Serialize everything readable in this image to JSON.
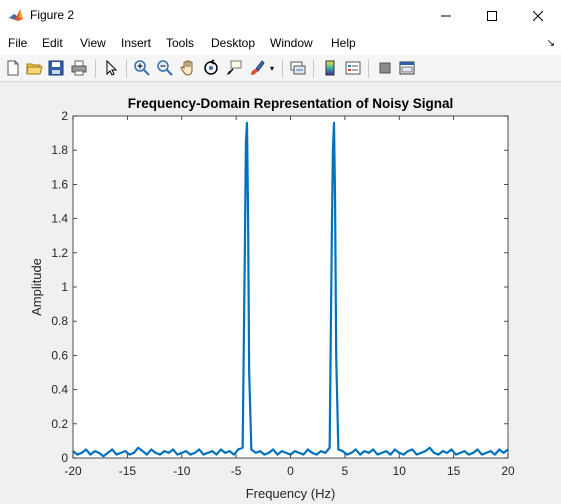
{
  "window": {
    "title": "Figure 2",
    "icon": "matlab-icon"
  },
  "menu": {
    "items": [
      "File",
      "Edit",
      "View",
      "Insert",
      "Tools",
      "Desktop",
      "Window",
      "Help"
    ]
  },
  "toolbar": {
    "buttons": [
      "new-figure-icon",
      "open-file-icon",
      "save-icon",
      "print-icon",
      "edit-plot-icon",
      "zoom-in-icon",
      "zoom-out-icon",
      "pan-icon",
      "rotate-3d-icon",
      "data-cursor-icon",
      "brush-icon",
      "link-plot-icon",
      "colorbar-icon",
      "legend-icon",
      "hide-plot-tools-icon",
      "show-plot-tools-icon"
    ]
  },
  "chart_data": {
    "type": "line",
    "title": "Frequency-Domain Representation of Noisy Signal",
    "xlabel": "Frequency (Hz)",
    "ylabel": "Amplitude",
    "xlim": [
      -20,
      20
    ],
    "ylim": [
      0,
      2
    ],
    "xticks": [
      -20,
      -15,
      -10,
      -5,
      0,
      5,
      10,
      15,
      20
    ],
    "yticks": [
      0,
      0.2,
      0.4,
      0.6,
      0.8,
      1,
      1.2,
      1.4,
      1.6,
      1.8,
      2
    ],
    "grid": false,
    "line_color": "#0072bd",
    "series": [
      {
        "x": [
          -20,
          -19.6,
          -19.2,
          -18.8,
          -18.4,
          -18,
          -17.6,
          -17.2,
          -16.8,
          -16.4,
          -16,
          -15.6,
          -15.2,
          -14.8,
          -14.4,
          -14,
          -13.6,
          -13.2,
          -12.8,
          -12.4,
          -12,
          -11.6,
          -11.2,
          -10.8,
          -10.4,
          -10,
          -9.6,
          -9.2,
          -8.8,
          -8.4,
          -8,
          -7.6,
          -7.2,
          -6.8,
          -6.4,
          -6,
          -5.6,
          -5.2,
          -4.8,
          -4.4,
          -4.2,
          -4.1,
          -4.0,
          -3.9,
          -3.8,
          -3.6,
          -3.2,
          -2.8,
          -2.4,
          -2,
          -1.6,
          -1.2,
          -0.8,
          -0.4,
          0,
          0.4,
          0.8,
          1.2,
          1.6,
          2,
          2.4,
          2.8,
          3.2,
          3.6,
          3.8,
          3.9,
          4.0,
          4.1,
          4.2,
          4.4,
          4.8,
          5.2,
          5.6,
          6,
          6.4,
          6.8,
          7.2,
          7.6,
          8,
          8.4,
          8.8,
          9.2,
          9.6,
          10,
          10.4,
          10.8,
          11.2,
          11.6,
          12,
          12.4,
          12.8,
          13.2,
          13.6,
          14,
          14.4,
          14.8,
          15.2,
          15.6,
          16,
          16.4,
          16.8,
          17.2,
          17.6,
          18,
          18.4,
          18.8,
          19.2,
          19.6,
          20
        ],
        "y": [
          0.04,
          0.02,
          0.03,
          0.05,
          0.02,
          0.04,
          0.03,
          0.01,
          0.03,
          0.05,
          0.02,
          0.03,
          0.04,
          0.02,
          0.03,
          0.06,
          0.04,
          0.02,
          0.05,
          0.03,
          0.02,
          0.04,
          0.03,
          0.05,
          0.02,
          0.03,
          0.04,
          0.02,
          0.03,
          0.05,
          0.02,
          0.03,
          0.04,
          0.02,
          0.05,
          0.03,
          0.04,
          0.02,
          0.05,
          0.06,
          1.2,
          1.85,
          1.96,
          1.4,
          0.5,
          0.05,
          0.03,
          0.04,
          0.02,
          0.03,
          0.05,
          0.02,
          0.04,
          0.03,
          0.02,
          0.04,
          0.03,
          0.02,
          0.05,
          0.03,
          0.02,
          0.04,
          0.03,
          0.06,
          1.3,
          1.8,
          1.96,
          1.5,
          0.6,
          0.05,
          0.04,
          0.02,
          0.03,
          0.05,
          0.02,
          0.04,
          0.03,
          0.05,
          0.02,
          0.03,
          0.04,
          0.02,
          0.05,
          0.03,
          0.02,
          0.04,
          0.05,
          0.02,
          0.03,
          0.04,
          0.06,
          0.03,
          0.02,
          0.04,
          0.03,
          0.05,
          0.02,
          0.03,
          0.04,
          0.02,
          0.03,
          0.05,
          0.02,
          0.03,
          0.04,
          0.02,
          0.05,
          0.03,
          0.05
        ]
      }
    ]
  }
}
